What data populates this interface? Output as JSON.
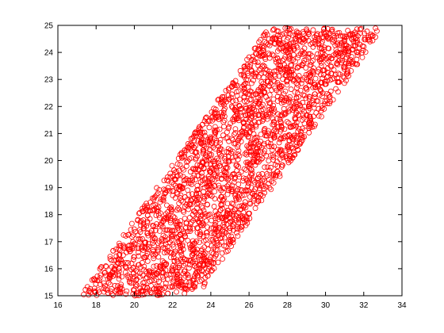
{
  "chart_data": {
    "type": "scatter",
    "title": "",
    "xlabel": "",
    "ylabel": "",
    "xlim": [
      16,
      34
    ],
    "ylim": [
      15,
      25
    ],
    "xticks": [
      16,
      18,
      20,
      22,
      24,
      26,
      28,
      30,
      32,
      34
    ],
    "yticks": [
      15,
      16,
      17,
      18,
      19,
      20,
      21,
      22,
      23,
      24,
      25
    ],
    "xtick_labels": [
      "16",
      "18",
      "20",
      "22",
      "24",
      "26",
      "28",
      "30",
      "32",
      "34"
    ],
    "ytick_labels": [
      "15",
      "16",
      "17",
      "18",
      "19",
      "20",
      "21",
      "22",
      "23",
      "24",
      "25"
    ],
    "grid": false,
    "legend": false,
    "marker": "circle-open",
    "marker_color": "#ff0000",
    "series": [
      {
        "region": "parallelogram band of open circle markers",
        "vertices": [
          [
            17.2,
            15.0
          ],
          [
            23.3,
            15.0
          ],
          [
            33.0,
            24.9
          ],
          [
            27.0,
            24.9
          ]
        ],
        "approx_points": 2500
      }
    ]
  }
}
